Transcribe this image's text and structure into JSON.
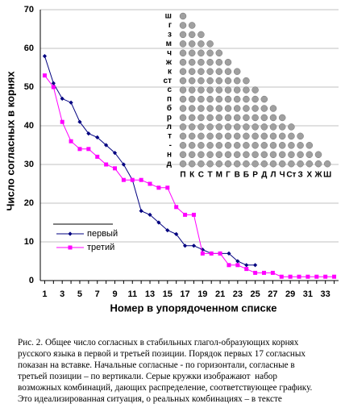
{
  "chart_data": {
    "type": "line",
    "y_label": "Число согласных в корнях",
    "x_label": "Номер в упорядоченном списке",
    "categories": [
      1,
      null,
      3,
      null,
      5,
      null,
      7,
      null,
      9,
      null,
      11,
      null,
      13,
      null,
      15,
      null,
      17,
      null,
      19,
      null,
      21,
      null,
      23,
      null,
      25,
      null,
      27,
      null,
      29,
      null,
      31,
      null,
      33,
      null
    ],
    "series": [
      {
        "name": "первый",
        "color": "#000080",
        "marker": "diamond",
        "values": [
          58,
          51,
          47,
          46,
          41,
          38,
          37,
          35,
          33,
          30,
          26,
          18,
          17,
          15,
          13,
          12,
          9,
          9,
          8,
          7,
          7,
          7,
          5,
          4,
          4,
          null,
          null,
          null,
          null,
          null,
          null,
          null,
          null,
          null
        ]
      },
      {
        "name": "третий",
        "color": "#ff00ff",
        "marker": "square",
        "values": [
          53,
          50,
          41,
          36,
          34,
          34,
          32,
          30,
          29,
          26,
          26,
          26,
          25,
          24,
          24,
          19,
          17,
          17,
          7,
          7,
          7,
          4,
          4,
          3,
          2,
          2,
          2,
          1,
          1,
          1,
          1,
          1,
          1,
          1
        ]
      }
    ],
    "ylim": [
      0,
      70
    ],
    "yticks": [
      0,
      10,
      20,
      30,
      40,
      50,
      60,
      70
    ],
    "grid": true,
    "inset": {
      "row_labels": [
        "ш",
        "г",
        "з",
        "м",
        "ч",
        "ж",
        "к",
        "ст",
        "с",
        "п",
        "б",
        "р",
        "л",
        "т",
        "-",
        "н",
        "д"
      ],
      "column_labels": [
        "П",
        "К",
        "С",
        "Т",
        "М",
        "Г",
        "В",
        "Б",
        "Р",
        "Д",
        "Л",
        "Ч",
        "Ст",
        "З",
        "Х",
        "Ж",
        "Ш"
      ]
    }
  },
  "caption": [
    "Рис. 2. Общее число согласных в стабильных глагол-образующих корнях",
    "русского языка в первой и третьей позиции. Порядок первых 17 согласных",
    "показан на вставке. Начальные согласные - по горизонтали, согласные в",
    "третьей позиции – по вертикали. Серые кружки изображают  набор",
    "возможных комбинаций, дающих распределение, соответствующее графику.",
    "Это идеализированная ситуация, о реальных комбинациях – в тексте"
  ]
}
